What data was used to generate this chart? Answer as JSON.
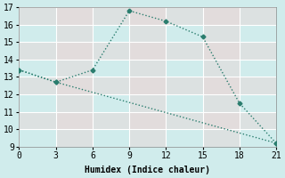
{
  "xlabel": "Humidex (Indice chaleur)",
  "line1_x": [
    0,
    3,
    6,
    9,
    12,
    15,
    18,
    21
  ],
  "line1_y": [
    13.4,
    12.7,
    13.4,
    16.8,
    16.2,
    15.3,
    11.5,
    9.2
  ],
  "line2_x": [
    0,
    3,
    21
  ],
  "line2_y": [
    13.4,
    12.7,
    9.2
  ],
  "line_color": "#2a7d6e",
  "bg_color": "#d0ecec",
  "grid_color": "#b8d8d8",
  "strip_color": "#e8d8d8",
  "xlim": [
    0,
    21
  ],
  "ylim": [
    9,
    17
  ],
  "xticks": [
    0,
    3,
    6,
    9,
    12,
    15,
    18,
    21
  ],
  "yticks": [
    9,
    10,
    11,
    12,
    13,
    14,
    15,
    16,
    17
  ]
}
